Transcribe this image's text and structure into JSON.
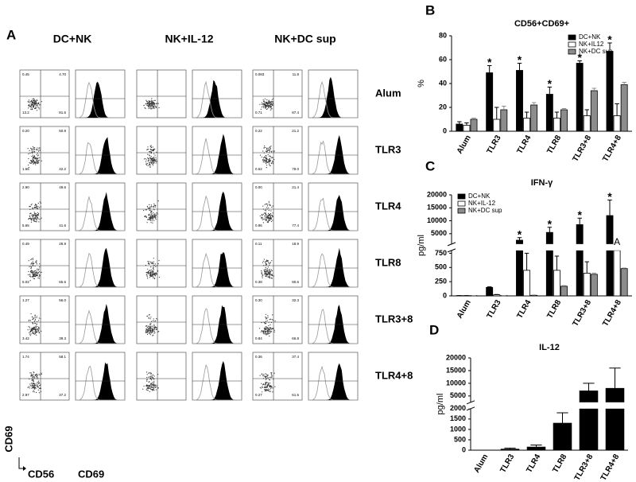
{
  "panel_a": {
    "panel_label": "A",
    "rows": [
      "Alum",
      "TLR3",
      "TLR4",
      "TLR8",
      "TLR3+8",
      "TLR4+8"
    ],
    "columns": [
      {
        "label": "DC+NK",
        "quadrants": [
          [
            "0.45",
            "4.70",
            "13.2",
            "81.6"
          ],
          [
            "0.20",
            "50.9",
            "1.66",
            "42.2"
          ],
          [
            "2.90",
            "49.6",
            "5.65",
            "41.6"
          ],
          [
            "0.49",
            "28.9",
            "5.02",
            "65.6"
          ],
          [
            "1.27",
            "56.0",
            "3.42",
            "39.3"
          ],
          [
            "1.74",
            "58.1",
            "2.97",
            "37.2"
          ]
        ]
      },
      {
        "label": "NK+IL-12"
      },
      {
        "label": "NK+DC sup",
        "quadrants": [
          [
            "0.083",
            "11.8",
            "0.71",
            "87.4"
          ],
          [
            "0.22",
            "21.2",
            "0.62",
            "78.0"
          ],
          [
            "0.00",
            "21.4",
            "0.96",
            "77.4"
          ],
          [
            "0.11",
            "18.9",
            "0.38",
            "80.6"
          ],
          [
            "0.30",
            "32.3",
            "0.84",
            "66.8"
          ],
          [
            "0.36",
            "37.4",
            "0.27",
            "61.5"
          ]
        ]
      }
    ],
    "y_axis_label": "CD69",
    "x_axis_label": "CD56",
    "histogram_axis_label": "CD69"
  },
  "chart_data": [
    {
      "type": "bar",
      "panel_label": "B",
      "title": "CD56+CD69+",
      "y_label": "%",
      "categories": [
        "Alum",
        "TLR3",
        "TLR4",
        "TLR8",
        "TLR3+8",
        "TLR4+8"
      ],
      "ylim": [
        0,
        80
      ],
      "yticks": [
        0,
        20,
        40,
        60,
        80
      ],
      "legend": "upper right",
      "series": [
        {
          "name": "DC+NK",
          "color": "#000000",
          "values": [
            6,
            49,
            51,
            31,
            57,
            67
          ],
          "errors": [
            2,
            6,
            6,
            6,
            2,
            7
          ]
        },
        {
          "name": "NK+IL12",
          "color": "#ffffff",
          "values": [
            5,
            10,
            11,
            11,
            13,
            13
          ],
          "errors": [
            2,
            10,
            5,
            5,
            5,
            10
          ]
        },
        {
          "name": "NK+DC sup",
          "color": "#8c8c8c",
          "values": [
            10,
            18,
            22,
            18,
            34,
            39
          ],
          "errors": [
            1,
            3,
            2,
            1,
            2,
            2
          ]
        }
      ],
      "annotations": [
        {
          "text": "*",
          "category": "TLR3",
          "series": "DC+NK"
        },
        {
          "text": "*",
          "category": "TLR4",
          "series": "DC+NK"
        },
        {
          "text": "*",
          "category": "TLR8",
          "series": "DC+NK"
        },
        {
          "text": "*",
          "category": "TLR3+8",
          "series": "DC+NK"
        },
        {
          "text": "*",
          "category": "TLR4+8",
          "series": "DC+NK"
        }
      ]
    },
    {
      "type": "bar",
      "panel_label": "C",
      "title": "IFN-γ",
      "y_label": "pg/ml",
      "categories": [
        "Alum",
        "TLR3",
        "TLR4",
        "TLR8",
        "TLR3+8",
        "TLR4+8"
      ],
      "ylim": [
        0,
        20000
      ],
      "yticks": [
        0,
        250,
        500,
        750,
        5000,
        10000,
        15000,
        20000
      ],
      "axis_break": [
        800,
        1000
      ],
      "legend": "upper left",
      "series": [
        {
          "name": "DC+NK",
          "color": "#000000",
          "values": [
            5,
            150,
            2500,
            5500,
            8500,
            12000
          ],
          "errors": [
            0,
            10,
            1000,
            2000,
            2500,
            6000
          ]
        },
        {
          "name": "NK+IL-12",
          "color": "#ffffff",
          "values": [
            5,
            20,
            450,
            450,
            400,
            800
          ],
          "errors": [
            0,
            5,
            300,
            250,
            200,
            100
          ]
        },
        {
          "name": "NK+DC sup",
          "color": "#8c8c8c",
          "values": [
            5,
            5,
            10,
            170,
            380,
            480
          ],
          "errors": [
            0,
            0,
            5,
            10,
            20,
            10
          ]
        }
      ],
      "annotations": [
        {
          "text": "*",
          "category": "TLR4",
          "series": "DC+NK"
        },
        {
          "text": "*",
          "category": "TLR8",
          "series": "DC+NK"
        },
        {
          "text": "*",
          "category": "TLR3+8",
          "series": "DC+NK"
        },
        {
          "text": "*",
          "category": "TLR4+8",
          "series": "DC+NK"
        },
        {
          "text": "A",
          "category": "TLR4+8",
          "series": "NK+IL-12"
        }
      ]
    },
    {
      "type": "bar",
      "panel_label": "D",
      "title": "IL-12",
      "y_label": "pg/ml",
      "categories": [
        "Alum",
        "TLR3",
        "TLR4",
        "TLR8",
        "TLR3+8",
        "TLR4+8"
      ],
      "ylim": [
        0,
        20000
      ],
      "yticks": [
        0,
        500,
        1000,
        1500,
        2000,
        5000,
        10000,
        15000,
        20000
      ],
      "axis_break": [
        2000,
        2500
      ],
      "color": "#000000",
      "values": [
        0,
        50,
        150,
        1300,
        7000,
        8000
      ],
      "errors": [
        0,
        50,
        100,
        500,
        3000,
        8000
      ]
    }
  ]
}
